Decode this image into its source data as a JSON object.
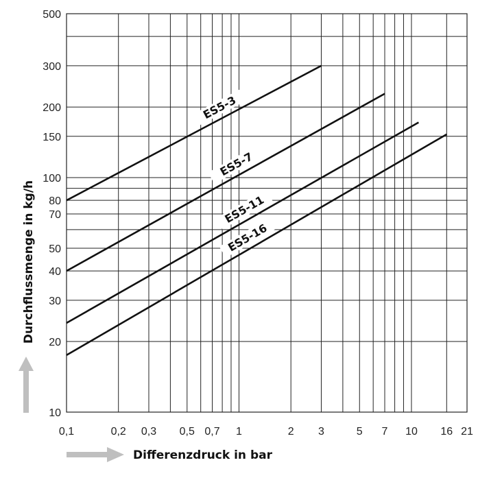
{
  "chart_data": {
    "type": "line",
    "xscale": "log",
    "yscale": "log",
    "xlim": [
      0.1,
      21
    ],
    "ylim": [
      10,
      500
    ],
    "grid": true,
    "xlabel": "Differenzdruck in bar",
    "ylabel": "Durchflussmenge in kg/h",
    "x_ticks": [
      0.1,
      0.2,
      0.3,
      0.5,
      0.7,
      1,
      2,
      3,
      5,
      7,
      10,
      16,
      21
    ],
    "x_tick_labels": [
      "0,1",
      "0,2",
      "0,3",
      "0,5",
      "0,7",
      "1",
      "2",
      "3",
      "5",
      "7",
      "10",
      "16",
      "21"
    ],
    "x_gridlines": [
      0.1,
      0.2,
      0.3,
      0.4,
      0.5,
      0.6,
      0.7,
      0.8,
      0.9,
      1,
      2,
      3,
      4,
      5,
      6,
      7,
      8,
      9,
      10,
      16,
      21
    ],
    "y_ticks": [
      10,
      20,
      30,
      40,
      50,
      70,
      80,
      100,
      150,
      200,
      300,
      500
    ],
    "y_tick_labels": [
      "10",
      "20",
      "30",
      "40",
      "50",
      "70",
      "80",
      "100",
      "150",
      "200",
      "300",
      "500"
    ],
    "y_gridlines": [
      10,
      20,
      30,
      40,
      50,
      60,
      70,
      80,
      90,
      100,
      150,
      200,
      300,
      400,
      500
    ],
    "series": [
      {
        "name": "ES5-3",
        "x": [
          0.1,
          3
        ],
        "y": [
          80,
          300
        ]
      },
      {
        "name": "ES5-7",
        "x": [
          0.1,
          7
        ],
        "y": [
          40,
          228
        ]
      },
      {
        "name": "ES5-11",
        "x": [
          0.1,
          11
        ],
        "y": [
          24,
          172
        ]
      },
      {
        "name": "ES5-16",
        "x": [
          0.1,
          16
        ],
        "y": [
          17.5,
          153
        ]
      }
    ]
  },
  "colors": {
    "grid": "#222222",
    "line": "#111111",
    "arrow": "#bfbfbf"
  }
}
